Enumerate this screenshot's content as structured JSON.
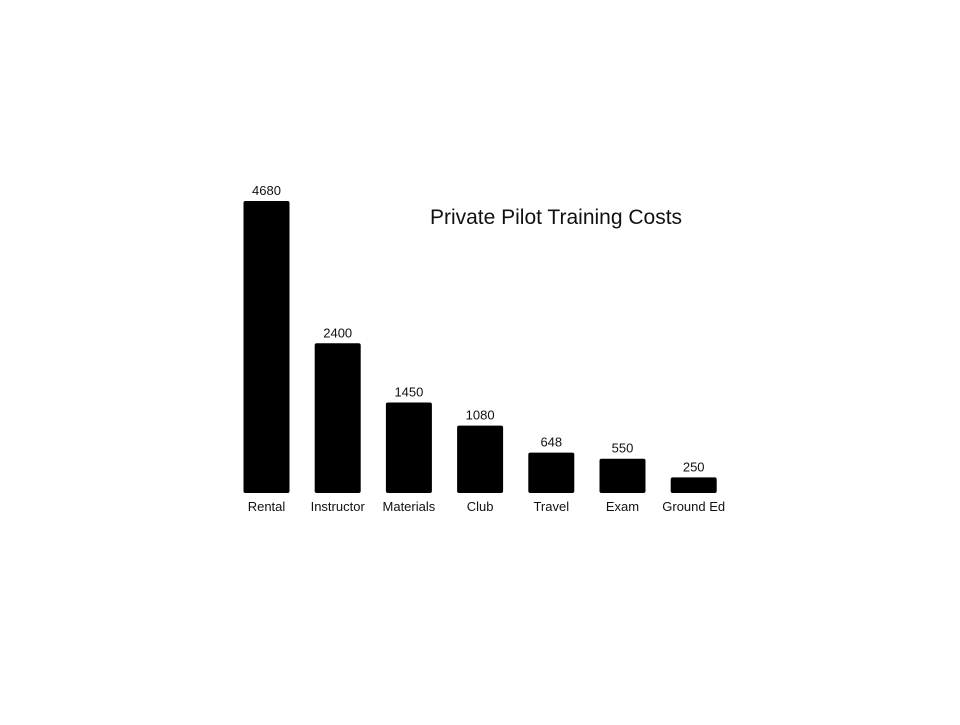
{
  "chart_data": {
    "type": "bar",
    "title": "Private Pilot Training Costs",
    "categories": [
      "Rental",
      "Instructor",
      "Materials",
      "Club",
      "Travel",
      "Exam",
      "Ground Ed"
    ],
    "values": [
      4680,
      2400,
      1450,
      1080,
      648,
      550,
      250
    ],
    "xlabel": "",
    "ylabel": "",
    "ylim": [
      0,
      4680
    ],
    "grid": false,
    "legend": "none",
    "bar_color": "#000000"
  }
}
